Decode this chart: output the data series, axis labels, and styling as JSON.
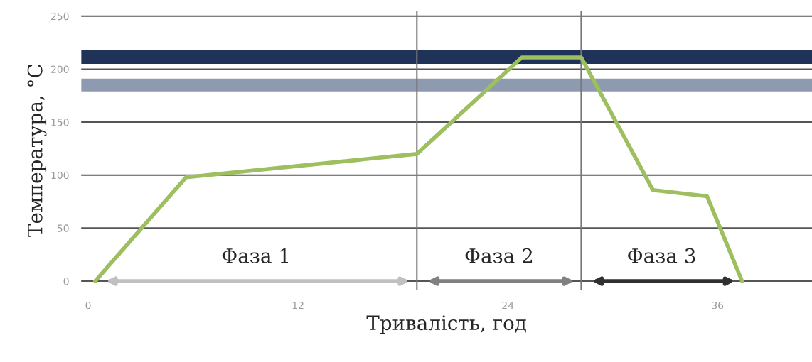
{
  "chart_data": {
    "type": "line",
    "xlabel": "Тривалість, год",
    "ylabel": "Температура, °C",
    "x": [
      0.4,
      5.6,
      18.8,
      24.8,
      28.2,
      32.3,
      35.4,
      37.4
    ],
    "series": [
      {
        "color": "#9dbf5f",
        "values": [
          0,
          98,
          120,
          211,
          211,
          86,
          80,
          0
        ]
      }
    ],
    "xlim": [
      -0.4,
      41.4
    ],
    "ylim": [
      -8,
      255
    ],
    "xticks": [
      0,
      12,
      24,
      36
    ],
    "yticks": [
      0,
      50,
      100,
      150,
      200,
      250
    ],
    "grid": "y",
    "legend": false,
    "marker": "none",
    "line_style": "solid",
    "ref_lines": [
      {
        "axis": "x",
        "value": 18.8,
        "color": "#777777"
      },
      {
        "axis": "x",
        "value": 28.2,
        "color": "#777777"
      }
    ],
    "bands": [
      {
        "axis": "y",
        "from": 205,
        "to": 218,
        "color": "#1f3358"
      },
      {
        "axis": "y",
        "from": 179,
        "to": 191,
        "color": "#8e9ab0"
      }
    ],
    "annotations": [
      "Фаза 1",
      "Фаза 2",
      "Фаза 3"
    ]
  }
}
